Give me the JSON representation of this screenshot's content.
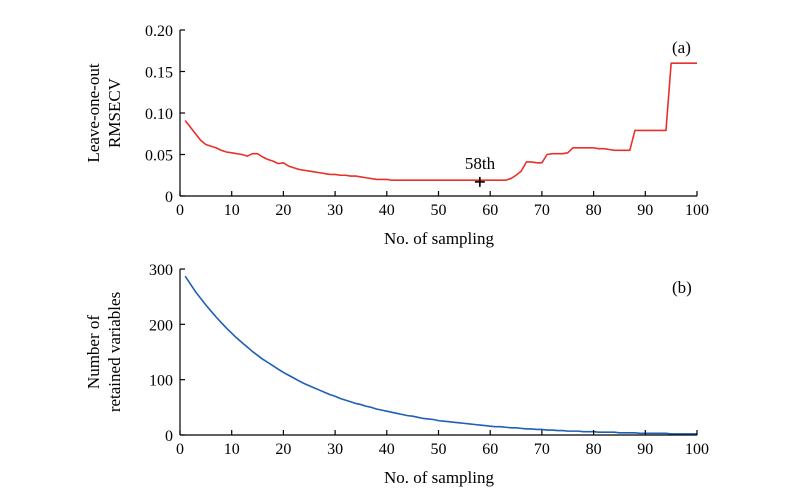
{
  "chart_data": [
    {
      "type": "line",
      "panel_label": "(a)",
      "xlabel": "No. of sampling",
      "ylabel_lines": [
        "Leave-one-out",
        "RMSECV"
      ],
      "xlim": [
        0,
        100
      ],
      "ylim": [
        0,
        0.2
      ],
      "xticks": [
        0,
        10,
        20,
        30,
        40,
        50,
        60,
        70,
        80,
        90,
        100
      ],
      "yticks": [
        0,
        0.05,
        0.1,
        0.15,
        0.2
      ],
      "ytick_labels": [
        "0",
        "0.05",
        "0.10",
        "0.15",
        "0.20"
      ],
      "grid": false,
      "annotation": {
        "text": "58th",
        "x": 58,
        "y": 0.017
      },
      "series": [
        {
          "color": "#e8312a",
          "x": [
            1,
            2,
            3,
            4,
            5,
            6,
            7,
            8,
            9,
            10,
            11,
            12,
            13,
            14,
            15,
            16,
            17,
            18,
            19,
            20,
            21,
            22,
            23,
            24,
            25,
            26,
            27,
            28,
            29,
            30,
            31,
            32,
            33,
            34,
            35,
            36,
            37,
            38,
            39,
            40,
            41,
            42,
            43,
            44,
            45,
            46,
            47,
            48,
            49,
            50,
            51,
            52,
            53,
            54,
            55,
            56,
            57,
            58,
            59,
            60,
            61,
            62,
            63,
            64,
            65,
            66,
            67,
            68,
            69,
            70,
            71,
            72,
            73,
            74,
            75,
            76,
            77,
            78,
            79,
            80,
            81,
            82,
            83,
            84,
            85,
            86,
            87,
            88,
            89,
            90,
            91,
            92,
            93,
            94,
            95,
            96,
            97,
            98,
            99,
            100
          ],
          "y": [
            0.091,
            0.083,
            0.075,
            0.067,
            0.062,
            0.06,
            0.058,
            0.055,
            0.053,
            0.052,
            0.051,
            0.05,
            0.048,
            0.051,
            0.051,
            0.047,
            0.044,
            0.042,
            0.039,
            0.04,
            0.036,
            0.034,
            0.032,
            0.031,
            0.03,
            0.029,
            0.028,
            0.027,
            0.026,
            0.026,
            0.025,
            0.025,
            0.024,
            0.024,
            0.023,
            0.022,
            0.021,
            0.02,
            0.02,
            0.02,
            0.019,
            0.019,
            0.019,
            0.019,
            0.019,
            0.019,
            0.019,
            0.019,
            0.019,
            0.019,
            0.019,
            0.019,
            0.019,
            0.019,
            0.019,
            0.019,
            0.019,
            0.019,
            0.019,
            0.019,
            0.019,
            0.019,
            0.019,
            0.021,
            0.025,
            0.03,
            0.041,
            0.041,
            0.04,
            0.04,
            0.05,
            0.051,
            0.051,
            0.051,
            0.052,
            0.058,
            0.058,
            0.058,
            0.058,
            0.058,
            0.057,
            0.057,
            0.056,
            0.055,
            0.055,
            0.055,
            0.055,
            0.079,
            0.079,
            0.079,
            0.079,
            0.079,
            0.079,
            0.079,
            0.16,
            0.16,
            0.16,
            0.16,
            0.16,
            0.16
          ]
        }
      ]
    },
    {
      "type": "line",
      "panel_label": "(b)",
      "xlabel": "No. of sampling",
      "ylabel_lines": [
        "Number of",
        "retained variables"
      ],
      "xlim": [
        0,
        100
      ],
      "ylim": [
        0,
        300
      ],
      "xticks": [
        0,
        10,
        20,
        30,
        40,
        50,
        60,
        70,
        80,
        90,
        100
      ],
      "yticks": [
        0,
        100,
        200,
        300
      ],
      "ytick_labels": [
        "0",
        "100",
        "200",
        "300"
      ],
      "grid": false,
      "series": [
        {
          "color": "#1f5fb4",
          "x": [
            1,
            2,
            3,
            4,
            5,
            6,
            7,
            8,
            9,
            10,
            11,
            12,
            13,
            14,
            15,
            16,
            17,
            18,
            19,
            20,
            21,
            22,
            23,
            24,
            25,
            26,
            27,
            28,
            29,
            30,
            31,
            32,
            33,
            34,
            35,
            36,
            37,
            38,
            39,
            40,
            41,
            42,
            43,
            44,
            45,
            46,
            47,
            48,
            49,
            50,
            51,
            52,
            53,
            54,
            55,
            56,
            57,
            58,
            59,
            60,
            61,
            62,
            63,
            64,
            65,
            66,
            67,
            68,
            69,
            70,
            71,
            72,
            73,
            74,
            75,
            76,
            77,
            78,
            79,
            80,
            81,
            82,
            83,
            84,
            85,
            86,
            87,
            88,
            89,
            90,
            91,
            92,
            93,
            94,
            95,
            96,
            97,
            98,
            99,
            100
          ],
          "y": [
            287,
            273,
            259,
            247,
            235,
            224,
            213,
            203,
            193,
            184,
            175,
            167,
            159,
            151,
            144,
            137,
            131,
            125,
            119,
            113,
            108,
            103,
            98,
            93,
            89,
            85,
            81,
            77,
            73,
            70,
            66,
            63,
            60,
            57,
            55,
            52,
            50,
            47,
            45,
            43,
            41,
            39,
            37,
            35,
            34,
            32,
            30,
            29,
            28,
            26,
            25,
            24,
            23,
            22,
            21,
            20,
            19,
            18,
            17,
            16,
            15,
            15,
            14,
            13,
            13,
            12,
            11,
            11,
            10,
            10,
            9,
            9,
            8,
            8,
            7,
            7,
            7,
            6,
            6,
            6,
            5,
            5,
            5,
            5,
            4,
            4,
            4,
            4,
            3,
            3,
            3,
            3,
            3,
            3,
            2,
            2,
            2,
            2,
            2,
            2
          ]
        }
      ]
    }
  ]
}
